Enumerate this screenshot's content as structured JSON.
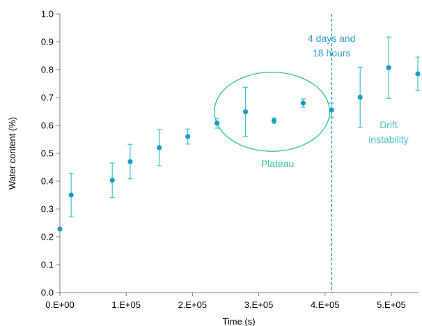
{
  "chart_data": {
    "type": "scatter",
    "xlabel": "Time (s)",
    "ylabel": "Water content (%)",
    "xlim": [
      0,
      540000
    ],
    "ylim": [
      0.0,
      1.0
    ],
    "x_ticks": [
      0,
      100000,
      200000,
      300000,
      400000,
      500000
    ],
    "x_tick_labels": [
      "0.E+00",
      "1.E+05",
      "2.E+05",
      "3.E+05",
      "4.E+05",
      "5.E+05"
    ],
    "y_ticks": [
      0.0,
      0.1,
      0.2,
      0.3,
      0.4,
      0.5,
      0.6,
      0.7,
      0.8,
      0.9,
      1.0
    ],
    "y_tick_labels": [
      "0.0",
      "0.1",
      "0.2",
      "0.3",
      "0.4",
      "0.5",
      "0.6",
      "0.7",
      "0.8",
      "0.9",
      "1.0"
    ],
    "grid": false,
    "points": [
      {
        "x": 0,
        "y": 0.228,
        "err": 0.0
      },
      {
        "x": 17000,
        "y": 0.35,
        "err": 0.078
      },
      {
        "x": 79000,
        "y": 0.403,
        "err": 0.062
      },
      {
        "x": 106000,
        "y": 0.47,
        "err": 0.062
      },
      {
        "x": 150000,
        "y": 0.52,
        "err": 0.065
      },
      {
        "x": 193000,
        "y": 0.56,
        "err": 0.027
      },
      {
        "x": 237000,
        "y": 0.608,
        "err": 0.018
      },
      {
        "x": 280000,
        "y": 0.649,
        "err": 0.088
      },
      {
        "x": 323000,
        "y": 0.617,
        "err": 0.01
      },
      {
        "x": 367000,
        "y": 0.68,
        "err": 0.015
      },
      {
        "x": 410000,
        "y": 0.655,
        "err": 0.025
      },
      {
        "x": 453000,
        "y": 0.701,
        "err": 0.108
      },
      {
        "x": 496000,
        "y": 0.807,
        "err": 0.11
      },
      {
        "x": 540000,
        "y": 0.785,
        "err": 0.06
      }
    ],
    "vline": {
      "x": 410000,
      "label_lines": [
        "4 days and",
        "18 hours"
      ]
    },
    "plateau": {
      "x_center": 320000,
      "y_center": 0.649,
      "x_radius": 87000,
      "y_radius": 0.142,
      "label": "Plateau"
    },
    "drift_label_lines": [
      "Drift",
      "instability"
    ],
    "colors": {
      "points": "#1a9bc4",
      "error_bars": "#3fc0cf",
      "vline": "#2e9fcf",
      "vline_label": "#2e9fcf",
      "plateau": "#2ec49a",
      "drift_label": "#4fc3d0",
      "axis": "#7f7f7f"
    }
  }
}
